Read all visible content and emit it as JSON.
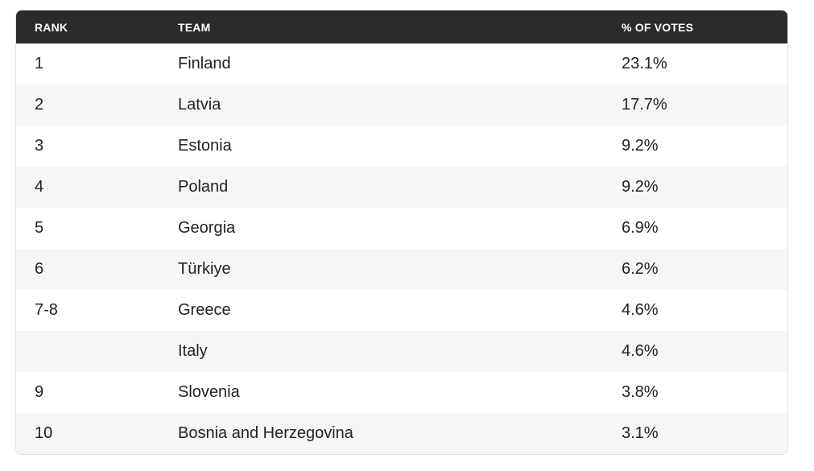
{
  "table": {
    "headers": {
      "rank": "RANK",
      "team": "TEAM",
      "votes": "% OF VOTES"
    },
    "rows": [
      {
        "rank": "1",
        "team": "Finland",
        "votes": "23.1%"
      },
      {
        "rank": "2",
        "team": "Latvia",
        "votes": "17.7%"
      },
      {
        "rank": "3",
        "team": "Estonia",
        "votes": "9.2%"
      },
      {
        "rank": "4",
        "team": "Poland",
        "votes": "9.2%"
      },
      {
        "rank": "5",
        "team": "Georgia",
        "votes": "6.9%"
      },
      {
        "rank": "6",
        "team": "Türkiye",
        "votes": "6.2%"
      },
      {
        "rank": "7-8",
        "team": "Greece",
        "votes": "4.6%"
      },
      {
        "rank": "",
        "team": "Italy",
        "votes": "4.6%"
      },
      {
        "rank": "9",
        "team": "Slovenia",
        "votes": "3.8%"
      },
      {
        "rank": "10",
        "team": "Bosnia and Herzegovina",
        "votes": "3.1%"
      }
    ]
  }
}
